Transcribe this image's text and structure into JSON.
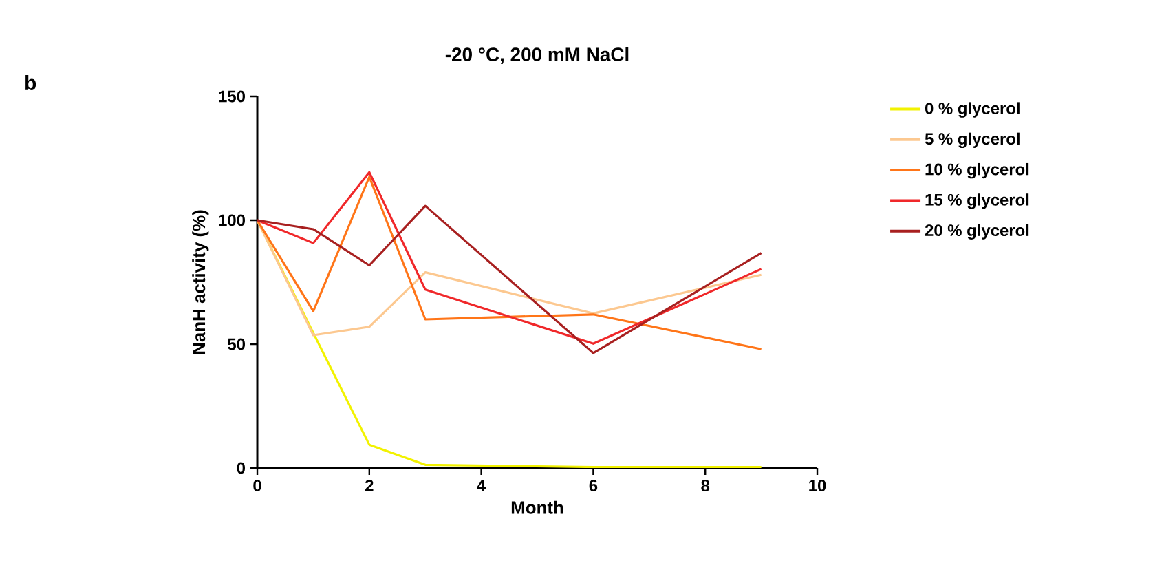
{
  "chart_data": {
    "type": "line",
    "title": "-20 °C, 200 mM NaCl",
    "xlabel": "Month",
    "ylabel": "NanH activity (%)",
    "annotations": [
      "b"
    ],
    "x": [
      0,
      1,
      2,
      3,
      6,
      9
    ],
    "series": [
      {
        "name": "0 % glycerol",
        "color": "#f2f200",
        "values": [
          100,
          54.5,
          9.4,
          1.3,
          0.4,
          0.4
        ]
      },
      {
        "name": "5 % glycerol",
        "color": "#fcc890",
        "values": [
          100,
          53.6,
          57,
          79,
          62.4,
          78
        ]
      },
      {
        "name": "10 % glycerol",
        "color": "#ff7518",
        "values": [
          100,
          63.3,
          117.5,
          60,
          62,
          48
        ]
      },
      {
        "name": "15 % glycerol",
        "color": "#f0282a",
        "values": [
          100,
          90.8,
          119.4,
          72,
          50.2,
          80.3
        ]
      },
      {
        "name": "20 % glycerol",
        "color": "#a82020",
        "values": [
          100,
          96.4,
          81.8,
          105.8,
          46.4,
          86.8
        ]
      }
    ],
    "xlim": [
      0,
      10
    ],
    "xticks": [
      0,
      2,
      4,
      6,
      8,
      10
    ],
    "ylim": [
      0,
      150
    ],
    "yticks": [
      0,
      50,
      100,
      150
    ],
    "grid": false,
    "legend": "right",
    "marker": "none",
    "line_style": "solid"
  }
}
